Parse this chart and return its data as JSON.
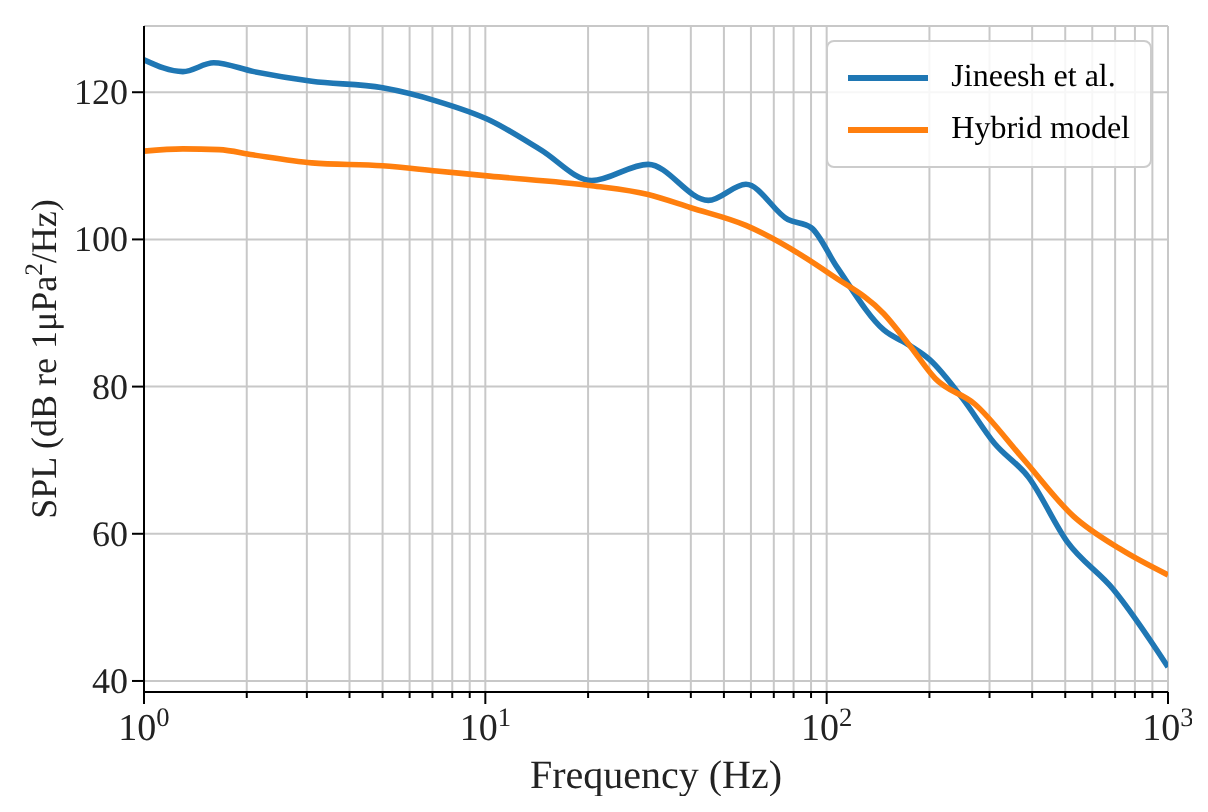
{
  "chart_data": {
    "type": "line",
    "xlabel": "Frequency (Hz)",
    "ylabel": "SPL (dB re 1μPa$^{2}$/Hz)",
    "log": "x",
    "grid": true,
    "legend": "top right",
    "xlim": [
      1,
      1000
    ],
    "ylim": [
      38.5,
      129
    ],
    "xticks": [
      {
        "value": 1,
        "label": "10$^{0}$"
      },
      {
        "value": 2,
        "label": null
      },
      {
        "value": 3,
        "label": null
      },
      {
        "value": 4,
        "label": null
      },
      {
        "value": 5,
        "label": null
      },
      {
        "value": 6,
        "label": null
      },
      {
        "value": 7,
        "label": null
      },
      {
        "value": 8,
        "label": null
      },
      {
        "value": 9,
        "label": null
      },
      {
        "value": 10,
        "label": "10$^{1}$"
      },
      {
        "value": 20,
        "label": null
      },
      {
        "value": 30,
        "label": null
      },
      {
        "value": 40,
        "label": null
      },
      {
        "value": 50,
        "label": null
      },
      {
        "value": 60,
        "label": null
      },
      {
        "value": 70,
        "label": null
      },
      {
        "value": 80,
        "label": null
      },
      {
        "value": 90,
        "label": null
      },
      {
        "value": 100,
        "label": "10$^{2}$"
      },
      {
        "value": 200,
        "label": null
      },
      {
        "value": 300,
        "label": null
      },
      {
        "value": 400,
        "label": null
      },
      {
        "value": 500,
        "label": null
      },
      {
        "value": 600,
        "label": null
      },
      {
        "value": 700,
        "label": null
      },
      {
        "value": 800,
        "label": null
      },
      {
        "value": 900,
        "label": null
      },
      {
        "value": 1000,
        "label": "10$^{3}$"
      }
    ],
    "yticks": [
      40,
      60,
      80,
      100,
      120
    ],
    "series": [
      {
        "name": "Jineesh et al.",
        "color": "#1f77b4",
        "x": [
          1,
          1.3,
          1.6,
          2.1,
          3.1,
          5,
          7.2,
          10.3,
          14.5,
          20.5,
          30,
          45,
          58,
          77,
          90,
          107,
          147,
          175,
          200,
          250,
          310,
          390,
          507,
          690,
          1000
        ],
        "values": [
          124.4,
          122.8,
          124,
          122.8,
          121.5,
          120.6,
          118.8,
          116.2,
          112.2,
          108,
          110.2,
          105.3,
          107.5,
          102.7,
          101.6,
          96.3,
          87.7,
          85.6,
          83.7,
          78.4,
          72.3,
          67.7,
          58.9,
          52.5,
          41.9
        ]
      },
      {
        "name": "Hybrid model",
        "color": "#ff7f0e",
        "x": [
          1,
          1.3,
          1.66,
          2.08,
          3.1,
          5,
          7.2,
          10.3,
          20.5,
          30,
          40,
          58,
          84,
          103,
          147,
          175,
          208,
          272,
          373,
          528,
          726,
          1000
        ],
        "values": [
          112,
          112.3,
          112.2,
          111.5,
          110.4,
          110,
          109.3,
          108.6,
          107.3,
          106.1,
          104.3,
          101.9,
          97.9,
          95.2,
          89.9,
          85.6,
          81.1,
          77.6,
          70.4,
          62.4,
          57.9,
          54.4
        ]
      }
    ]
  }
}
